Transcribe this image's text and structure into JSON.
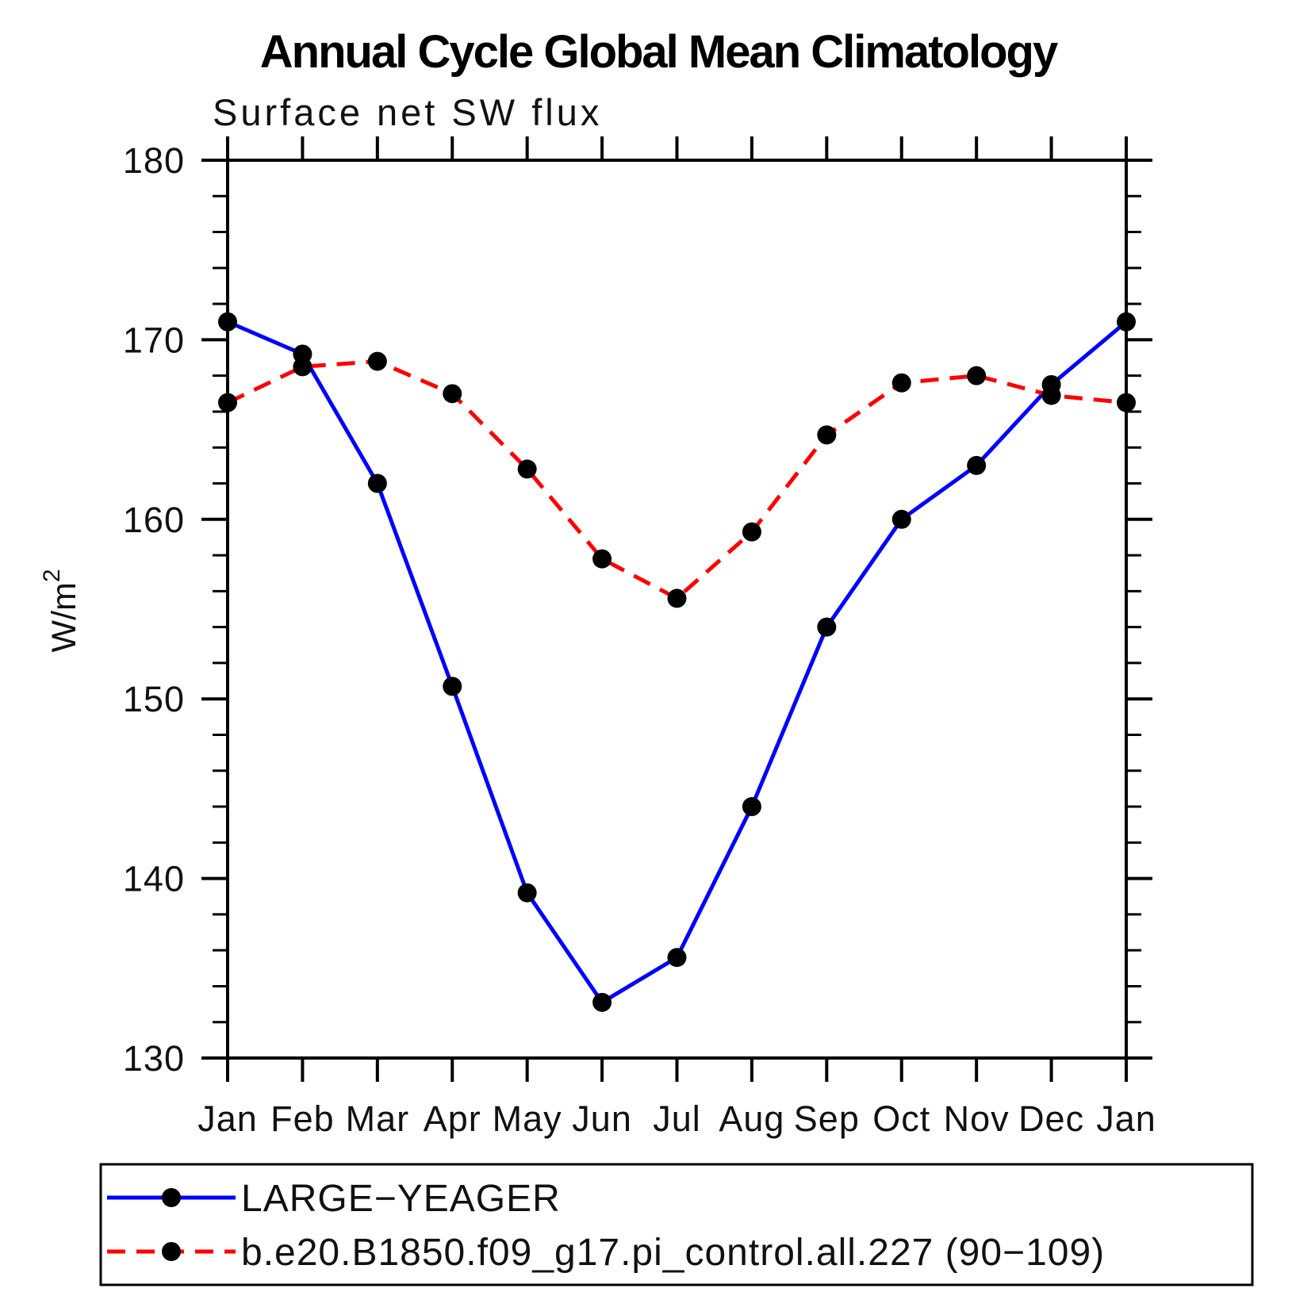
{
  "page": {
    "background": "#ffffff"
  },
  "chart_data": {
    "type": "line",
    "title": "Annual Cycle Global Mean Climatology",
    "subtitle": "Surface net SW flux",
    "xlabel": "",
    "ylabel": "W/m²",
    "categories": [
      "Jan",
      "Feb",
      "Mar",
      "Apr",
      "May",
      "Jun",
      "Jul",
      "Aug",
      "Sep",
      "Oct",
      "Nov",
      "Dec",
      "Jan"
    ],
    "ylim": [
      130,
      180
    ],
    "y_major_ticks": [
      130,
      140,
      150,
      160,
      170,
      180
    ],
    "y_minor_step": 2,
    "grid": false,
    "legend_position": "bottom",
    "axis_color": "#000000",
    "series": [
      {
        "name": "LARGE−YEAGER",
        "color": "#0000ff",
        "line_style": "solid",
        "marker": "circle",
        "marker_color": "#000000",
        "values": [
          171.0,
          169.2,
          162.0,
          150.7,
          139.2,
          133.1,
          135.6,
          144.0,
          154.0,
          160.0,
          163.0,
          167.5,
          171.0
        ]
      },
      {
        "name": "b.e20.B1850.f09_g17.pi_control.all.227 (90−109)",
        "color": "#ff0000",
        "line_style": "dashed",
        "marker": "circle",
        "marker_color": "#000000",
        "values": [
          166.5,
          168.5,
          168.8,
          167.0,
          162.8,
          157.8,
          155.6,
          159.3,
          164.7,
          167.6,
          168.0,
          166.9,
          166.5
        ]
      }
    ]
  }
}
